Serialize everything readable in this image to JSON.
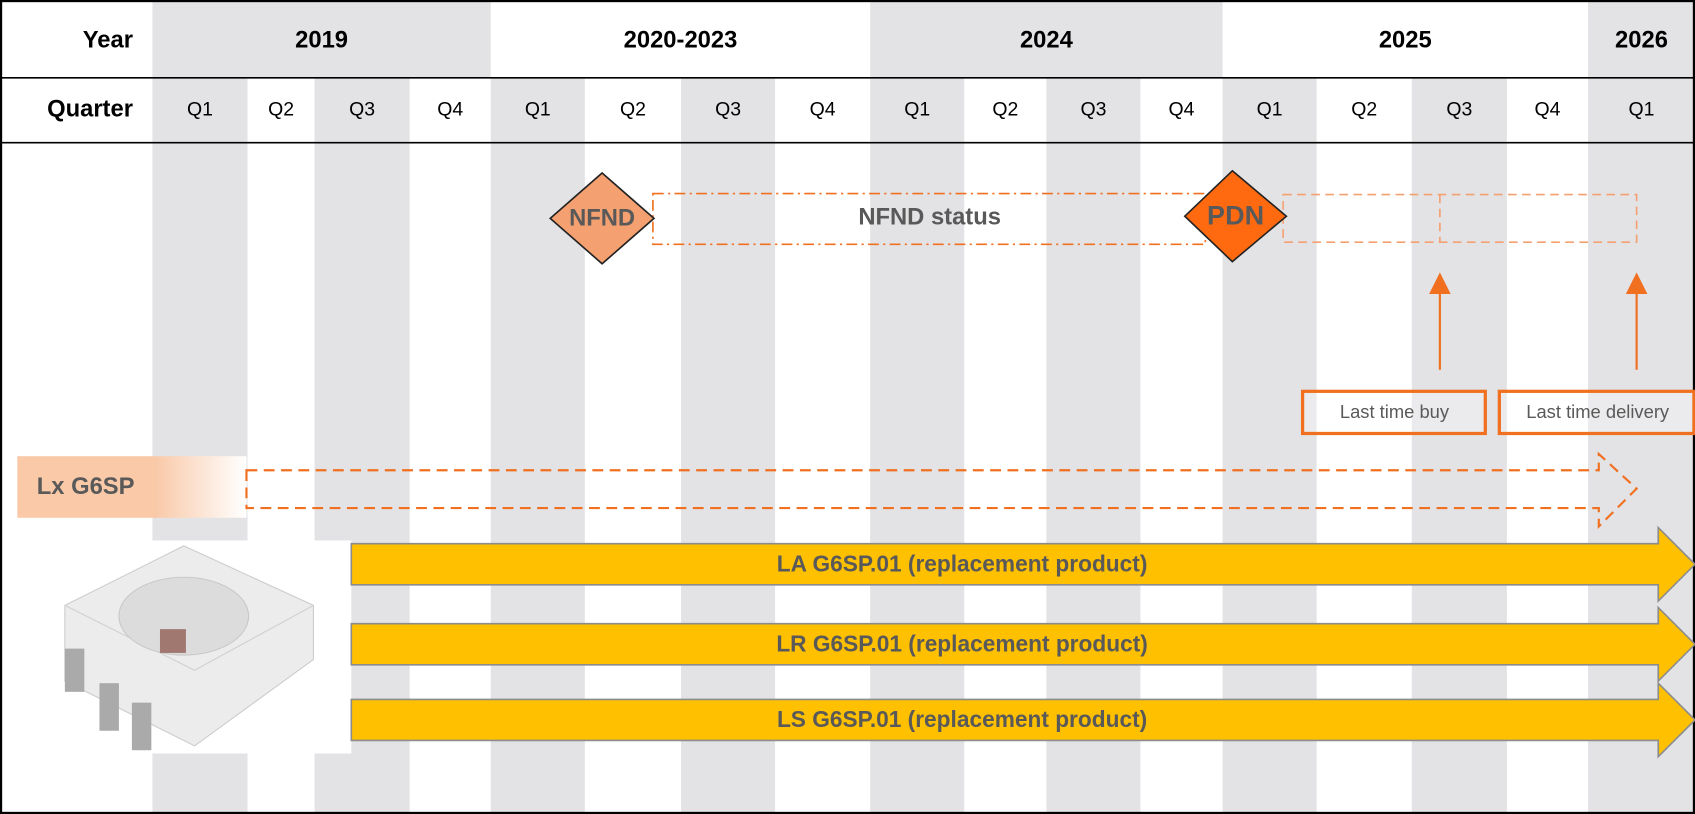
{
  "header": {
    "year_label": "Year",
    "quarter_label": "Quarter",
    "years": [
      "2019",
      "2020-2023",
      "2024",
      "2025",
      "2026"
    ],
    "quarters": [
      "Q1",
      "Q2",
      "Q3",
      "Q4",
      "Q1",
      "Q2",
      "Q3",
      "Q4",
      "Q1",
      "Q2",
      "Q3",
      "Q4",
      "Q1",
      "Q2",
      "Q3",
      "Q4",
      "Q1"
    ]
  },
  "milestones": {
    "nfnd": "NFND",
    "nfnd_status": "NFND status",
    "pdn": "PDN",
    "last_time_buy": "Last time buy",
    "last_time_delivery": "Last time delivery"
  },
  "product": "Lx G6SP",
  "replacements": [
    "LA G6SP.01 (replacement product)",
    "LR G6SP.01 (replacement product)",
    "LS G6SP.01 (replacement product)"
  ]
}
